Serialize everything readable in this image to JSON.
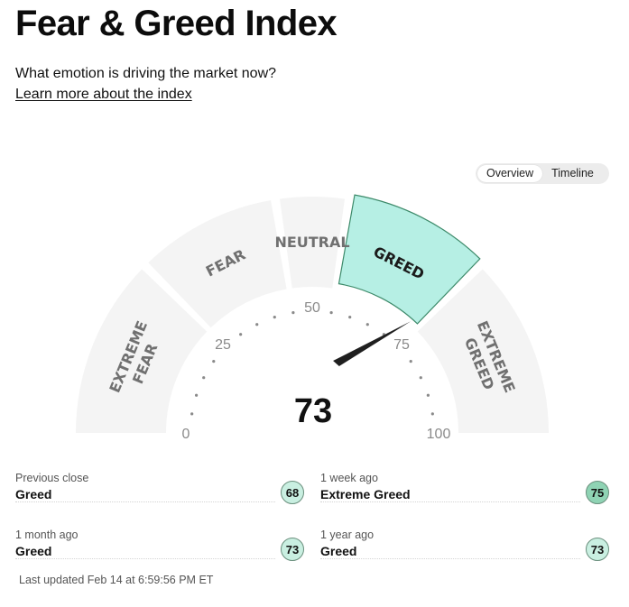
{
  "header": {
    "title": "Fear & Greed Index",
    "subtitle": "What emotion is driving the market now?",
    "learn_more": "Learn more about the index"
  },
  "view_toggle": {
    "options": [
      "Overview",
      "Timeline"
    ],
    "selected": "Overview"
  },
  "gauge": {
    "score": 73,
    "min": 0,
    "max": 100,
    "ticks": [
      "0",
      "25",
      "50",
      "75",
      "100"
    ],
    "segments": [
      {
        "label": "EXTREME FEAR",
        "from": 0,
        "to": 25
      },
      {
        "label": "FEAR",
        "from": 25,
        "to": 45
      },
      {
        "label": "NEUTRAL",
        "from": 45,
        "to": 55
      },
      {
        "label": "GREED",
        "from": 55,
        "to": 75
      },
      {
        "label": "EXTREME GREED",
        "from": 75,
        "to": 100
      }
    ],
    "active_segment": "GREED",
    "colors": {
      "segment": "#f4f4f4",
      "active_fill": "#b6efe4",
      "active_stroke": "#3d8a6a",
      "needle": "#1f1f1f",
      "segment_label": "#707070"
    }
  },
  "history": {
    "previous_close": {
      "label": "Previous close",
      "rating": "Greed",
      "value": "68"
    },
    "one_week_ago": {
      "label": "1 week ago",
      "rating": "Extreme Greed",
      "value": "75"
    },
    "one_month_ago": {
      "label": "1 month ago",
      "rating": "Greed",
      "value": "73"
    },
    "one_year_ago": {
      "label": "1 year ago",
      "rating": "Greed",
      "value": "73"
    }
  },
  "last_updated": "Last updated Feb 14 at 6:59:56 PM ET"
}
